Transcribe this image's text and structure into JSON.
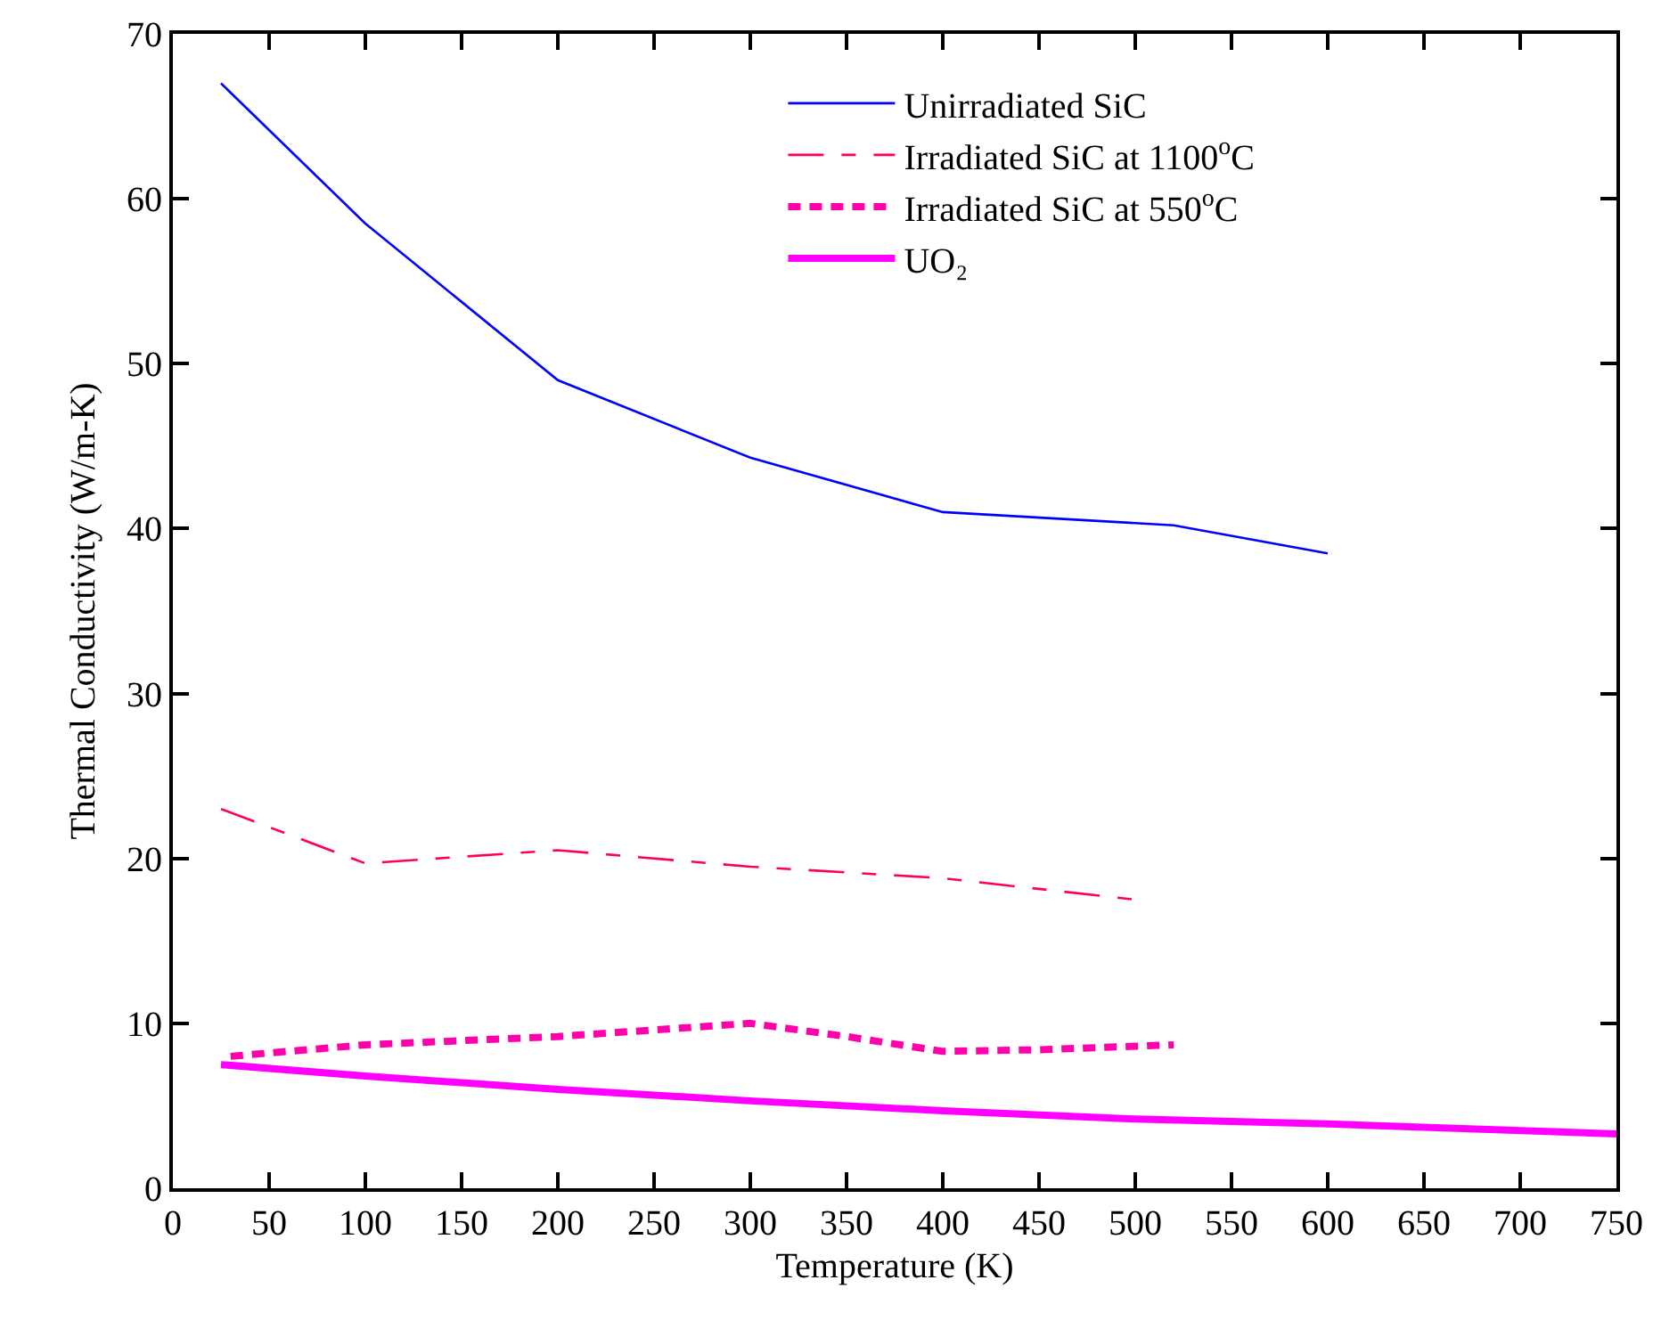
{
  "chart_data": {
    "type": "line",
    "xlabel": "Temperature (K)",
    "ylabel": "Thermal Conductivity (W/m-K)",
    "xlim": [
      0,
      750
    ],
    "xticks": [
      0,
      50,
      100,
      150,
      200,
      250,
      300,
      350,
      400,
      450,
      500,
      550,
      600,
      650,
      700,
      750
    ],
    "ylim": [
      0,
      70
    ],
    "yticks": [
      0,
      10,
      20,
      30,
      40,
      50,
      60,
      70
    ],
    "grid": false,
    "legend": "top right",
    "marker": "none",
    "series": [
      {
        "name": "Unirradiated SiC",
        "color": "#0000ff",
        "line_style": "solid",
        "x": [
          25,
          100,
          200,
          300,
          400,
          520,
          600
        ],
        "values": [
          67,
          58.5,
          49,
          44.3,
          41,
          40.2,
          38.5
        ]
      },
      {
        "name": "Irradiated SiC at 1100$^{o}$C",
        "color": "#ff0055",
        "line_style": "dashed",
        "x": [
          25,
          100,
          200,
          300,
          400,
          500
        ],
        "values": [
          23,
          19.7,
          20.5,
          19.5,
          18.8,
          17.5
        ]
      },
      {
        "name": "Irradiated SiC at 550$^{o}$C",
        "color": "#ff00aa",
        "line_style": "dotted",
        "x": [
          30,
          100,
          200,
          300,
          350,
          400,
          450,
          520
        ],
        "values": [
          8,
          8.7,
          9.2,
          10,
          9.2,
          8.3,
          8.4,
          8.7
        ]
      },
      {
        "name": "UO₂",
        "color": "#ff00ff",
        "line_style": "solid",
        "x": [
          25,
          100,
          200,
          300,
          400,
          500,
          600,
          750
        ],
        "values": [
          7.5,
          6.8,
          6,
          5.3,
          4.7,
          4.2,
          3.9,
          3.3
        ]
      }
    ]
  }
}
